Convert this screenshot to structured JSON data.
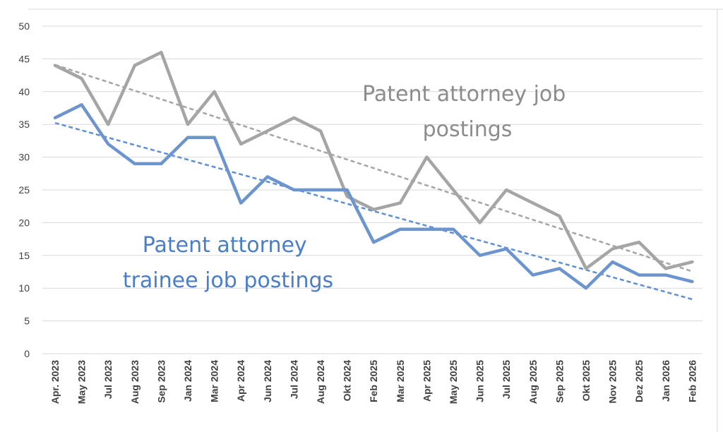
{
  "chart_data": {
    "type": "line",
    "categories": [
      "Apr. 2023",
      "May 2023",
      "Jul 2023",
      "Aug 2023",
      "Sep 2023",
      "Jan 2024",
      "Mar 2024",
      "Apr 2024",
      "Jun 2024",
      "Jul 2024",
      "Aug 2024",
      "Okt 2024",
      "Feb 2025",
      "Mar 2025",
      "Apr 2025",
      "May 2025",
      "Jun 2025",
      "Jul 2025",
      "Aug 2025",
      "Sep 2025",
      "Okt 2025",
      "Nov 2025",
      "Dez 2025",
      "Jan 2026",
      "Feb 2026"
    ],
    "series": [
      {
        "color": "#a5a5a5",
        "trend_color": "#a5a5a5",
        "values": [
          44,
          42,
          35,
          44,
          46,
          35,
          40,
          32,
          34,
          36,
          34,
          24,
          22,
          23,
          30,
          25,
          20,
          25,
          23,
          21,
          13,
          16,
          17,
          13,
          14
        ],
        "trendline": "linear"
      },
      {
        "color": "#6c95cf",
        "trend_color": "#5b8fd6",
        "values": [
          36,
          38,
          32,
          29,
          29,
          33,
          33,
          23,
          27,
          25,
          25,
          25,
          17,
          19,
          19,
          19,
          15,
          16,
          12,
          13,
          10,
          14,
          12,
          12,
          11
        ],
        "trendline": "linear"
      }
    ],
    "annotations": [
      {
        "lines": [
          "Patent attorney job",
          "postings"
        ],
        "color": "#8c8c8c"
      },
      {
        "lines": [
          "Patent attorney",
          "trainee job postings"
        ],
        "color": "#4a7ec9"
      }
    ],
    "ylim": [
      0,
      50
    ],
    "yticks": [
      0,
      5,
      10,
      15,
      20,
      25,
      30,
      35,
      40,
      45,
      50
    ],
    "grid": true,
    "legend": "none"
  }
}
